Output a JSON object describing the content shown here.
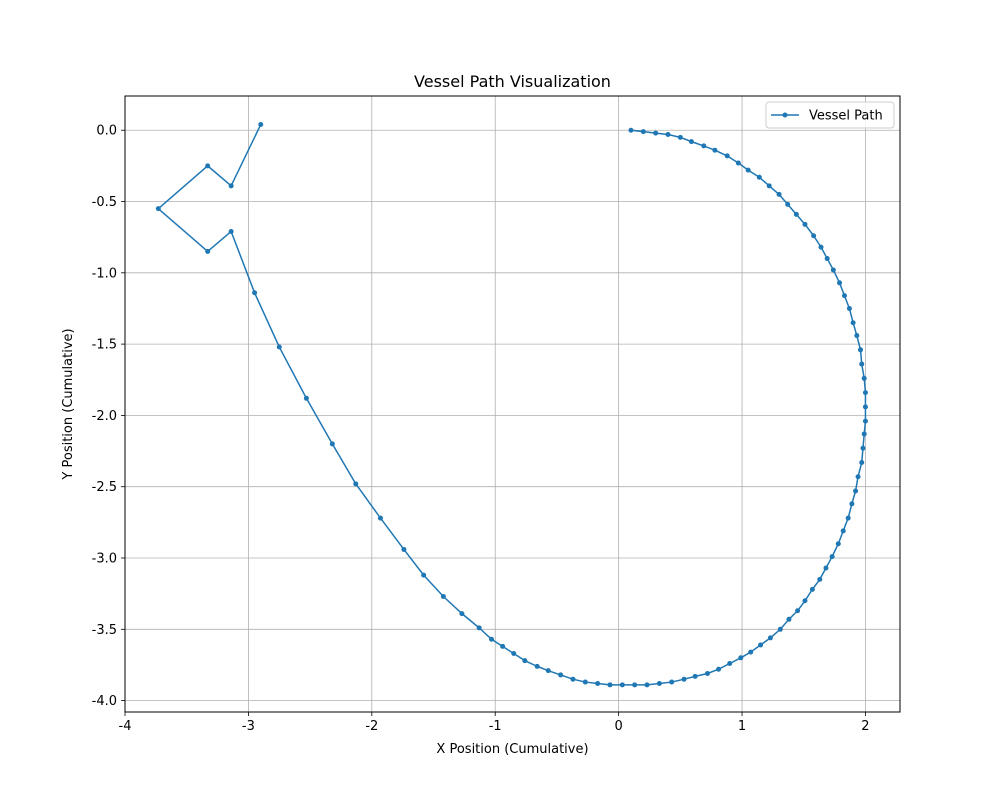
{
  "chart_data": {
    "type": "line",
    "title": "Vessel Path Visualization",
    "xlabel": "X Position (Cumulative)",
    "ylabel": "Y Position (Cumulative)",
    "xlim": [
      -4.0,
      2.28
    ],
    "ylim": [
      -4.08,
      0.24
    ],
    "xticks": [
      -4,
      -3,
      -2,
      -1,
      0,
      1,
      2
    ],
    "yticks": [
      0.0,
      -0.5,
      -1.0,
      -1.5,
      -2.0,
      -2.5,
      -3.0,
      -3.5,
      -4.0
    ],
    "grid": true,
    "legend_position": "top-right",
    "series": [
      {
        "name": "Vessel Path",
        "color": "#1f77b4",
        "marker": "circle",
        "x": [
          0.1,
          0.2,
          0.3,
          0.4,
          0.5,
          0.59,
          0.69,
          0.78,
          0.88,
          0.97,
          1.05,
          1.14,
          1.22,
          1.3,
          1.37,
          1.44,
          1.51,
          1.58,
          1.64,
          1.69,
          1.74,
          1.79,
          1.83,
          1.87,
          1.9,
          1.93,
          1.96,
          1.97,
          1.99,
          2.0,
          2.0,
          2.0,
          1.99,
          1.98,
          1.97,
          1.94,
          1.92,
          1.89,
          1.86,
          1.82,
          1.78,
          1.73,
          1.68,
          1.63,
          1.57,
          1.51,
          1.45,
          1.38,
          1.31,
          1.23,
          1.15,
          1.07,
          0.99,
          0.9,
          0.81,
          0.72,
          0.62,
          0.53,
          0.43,
          0.33,
          0.23,
          0.13,
          0.03,
          -0.07,
          -0.17,
          -0.27,
          -0.37,
          -0.47,
          -0.57,
          -0.66,
          -0.76,
          -0.85,
          -0.94,
          -1.03,
          -1.13,
          -1.27,
          -1.42,
          -1.58,
          -1.74,
          -1.93,
          -2.13,
          -2.32,
          -2.53,
          -2.75,
          -2.95,
          -3.14,
          -3.33,
          -3.73,
          -3.33,
          -3.14,
          -2.9
        ],
        "y": [
          0.0,
          -0.01,
          -0.02,
          -0.03,
          -0.05,
          -0.08,
          -0.11,
          -0.14,
          -0.18,
          -0.23,
          -0.28,
          -0.33,
          -0.39,
          -0.45,
          -0.52,
          -0.59,
          -0.66,
          -0.74,
          -0.82,
          -0.9,
          -0.98,
          -1.07,
          -1.16,
          -1.25,
          -1.35,
          -1.44,
          -1.54,
          -1.64,
          -1.74,
          -1.84,
          -1.94,
          -2.04,
          -2.13,
          -2.23,
          -2.33,
          -2.43,
          -2.53,
          -2.62,
          -2.72,
          -2.81,
          -2.9,
          -2.99,
          -3.07,
          -3.15,
          -3.22,
          -3.3,
          -3.37,
          -3.43,
          -3.5,
          -3.56,
          -3.61,
          -3.66,
          -3.7,
          -3.74,
          -3.78,
          -3.81,
          -3.83,
          -3.85,
          -3.87,
          -3.88,
          -3.89,
          -3.89,
          -3.89,
          -3.89,
          -3.88,
          -3.87,
          -3.85,
          -3.82,
          -3.79,
          -3.76,
          -3.72,
          -3.67,
          -3.62,
          -3.57,
          -3.49,
          -3.39,
          -3.27,
          -3.12,
          -2.94,
          -2.72,
          -2.48,
          -2.2,
          -1.88,
          -1.52,
          -1.14,
          -0.71,
          -0.85,
          -0.55,
          -0.25,
          -0.39,
          0.04
        ]
      }
    ]
  }
}
